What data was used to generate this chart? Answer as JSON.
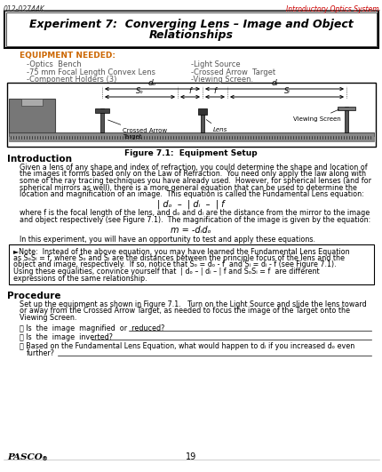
{
  "header_left": "012-02744K",
  "header_right": "Introductory Optics System",
  "title_line1": "Experiment 7:  Converging Lens – Image and Object",
  "title_line2": "Relationships",
  "equipment_header": "EQUIPMENT NEEDED:",
  "equip_left": [
    "-Optics  Bench",
    "-75 mm Focal Length Convex Lens",
    "-Component Holders (3)"
  ],
  "equip_right": [
    "-Light Source",
    "-Crossed Arrow  Target",
    "-Viewing Screen."
  ],
  "figure_caption": "Figure 7.1:  Equipment Setup",
  "intro_header": "Introduction",
  "intro_lines": [
    "Given a lens of any shape and index of refraction, you could determine the shape and location of",
    "the images it forms based only on the Law of Refraction.  You need only apply the law along with",
    "some of the ray tracing techniques you have already used.  However, for spherical lenses (and for",
    "spherical mirrors as well), there is a more general equation that can be used to determine the",
    "location and magnification of an image.  This equation is called the Fundamental Lens equation:"
  ],
  "lens_eq": "| dₒ  –  | dᵢ  –  | f",
  "where_lines": [
    "where f is the focal length of the lens, and dₒ and dᵢ are the distance from the mirror to the image",
    "and object respectively (see Figure 7.1).  The magnification of the image is given by the equation:"
  ],
  "mag_eq": "m = -dᵢdₒ",
  "in_this": "In this experiment, you will have an opportunity to test and apply these equations.",
  "note_lines": [
    "►Note:  Instead of the above equation, you may have learned the Fundamental Lens Equation",
    "as SₒSᵢ = f, where Sₒ and Sᵢ are the distances between the principle focus of the lens and the",
    "object and image, respectively.  If so, notice that Sₒ = dₒ - f  and Sᵢ = dᵢ - f (see Figure 7.1).",
    "Using these equalities, convince yourself that  | dₒ – | dᵢ – | f and SₒSᵢ = f  are different",
    "expressions of the same relationship."
  ],
  "proc_header": "Procedure",
  "proc_lines": [
    "Set up the equipment as shown in Figure 7.1.   Turn on the Light Source and slide the lens toward",
    "or away from the Crossed Arrow Target, as needed to focus the image of the Target onto the",
    "Viewing Screen."
  ],
  "q1": "ⓘ Is  the  image  magnified  or  reduced?",
  "q2": "ⓙ Is  the  image  inverted?",
  "q3a": "ⓚ Based on the Fundamental Lens Equation, what would happen to dᵢ if you increased dₒ even",
  "q3b": "further?",
  "page_number": "19",
  "bg_color": "#ffffff"
}
